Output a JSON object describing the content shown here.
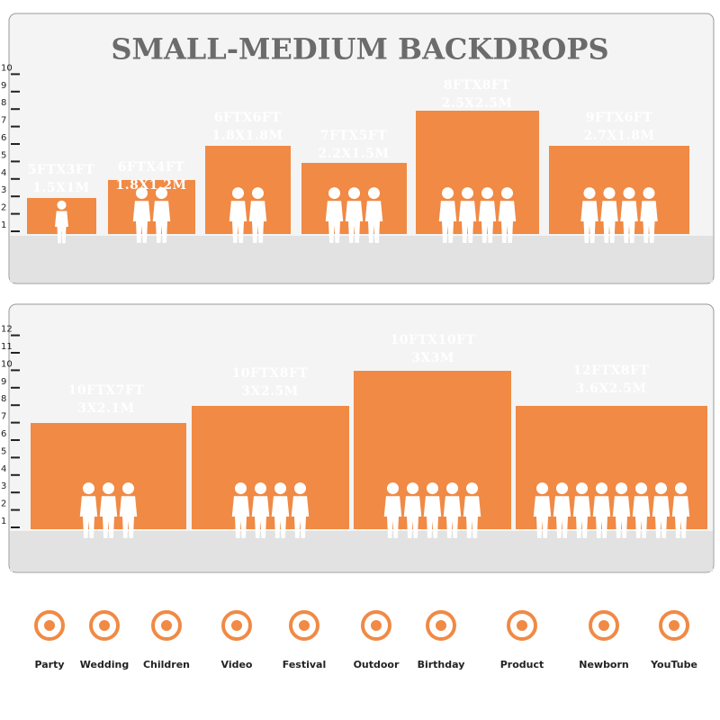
{
  "header": {
    "title": "SMALL-MEDIUM BACKDROPS"
  },
  "panels": [
    {
      "scale": [
        1,
        2,
        3,
        4,
        5,
        6,
        7,
        8,
        9,
        10
      ],
      "items": [
        {
          "size_ft": "5FTX3FT",
          "size_m": "1.5X1M"
        },
        {
          "size_ft": "6FTX4FT",
          "size_m": "1.8X1.2M"
        },
        {
          "size_ft": "6FTX6FT",
          "size_m": "1.8X1.8M"
        },
        {
          "size_ft": "7FTX5FT",
          "size_m": "2.2X1.5M"
        },
        {
          "size_ft": "8FTX8FT",
          "size_m": "2.5X2.5M"
        },
        {
          "size_ft": "9FTX6FT",
          "size_m": "2.7X1.8M"
        }
      ]
    },
    {
      "scale": [
        1,
        2,
        3,
        4,
        5,
        6,
        7,
        8,
        9,
        10,
        11,
        12
      ],
      "items": [
        {
          "size_ft": "10FTX7FT",
          "size_m": "3X2.1M"
        },
        {
          "size_ft": "10FTX8FT",
          "size_m": "3X2.5M"
        },
        {
          "size_ft": "10FTX10FT",
          "size_m": "3X3M"
        },
        {
          "size_ft": "12FTX8FT",
          "size_m": "3.6X2.5M"
        }
      ]
    }
  ],
  "uses": [
    "Party",
    "Wedding",
    "Children",
    "Video",
    "Festival",
    "Outdoor",
    "Birthday",
    "Product",
    "Newborn",
    "YouTube"
  ]
}
